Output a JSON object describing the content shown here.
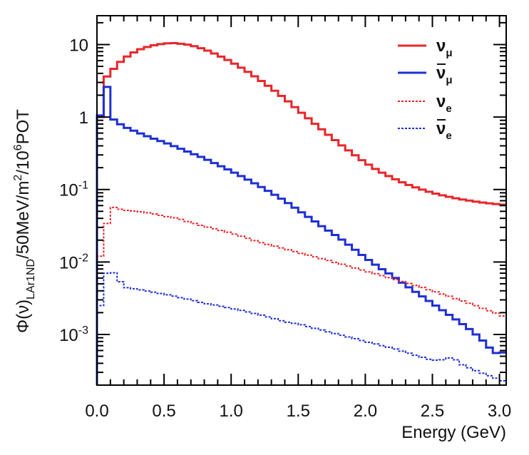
{
  "chart_data": {
    "type": "line",
    "step": true,
    "title": "",
    "xlabel": "Energy (GeV)",
    "ylabel": {
      "phi": "Φ(ν)",
      "subscript": "LAr1ND",
      "per_energy": "/50MeV/m",
      "area_exp": "2",
      "per": "/10",
      "pot_exp": "6",
      "pot": "POT"
    },
    "x_scale": "linear",
    "y_scale": "log",
    "xlim": [
      0.0,
      3.05
    ],
    "ylim": [
      0.0002,
      25
    ],
    "grid": false,
    "legend_position": "top-right",
    "x_ticks": [
      {
        "value": 0.0,
        "label": "0.0"
      },
      {
        "value": 0.5,
        "label": "0.5"
      },
      {
        "value": 1.0,
        "label": "1.0"
      },
      {
        "value": 1.5,
        "label": "1.5"
      },
      {
        "value": 2.0,
        "label": "2.0"
      },
      {
        "value": 2.5,
        "label": "2.5"
      },
      {
        "value": 3.0,
        "label": "3.0"
      }
    ],
    "y_ticks": [
      {
        "value": 10,
        "label": "10",
        "exp": ""
      },
      {
        "value": 1,
        "label": "1",
        "exp": ""
      },
      {
        "value": 0.1,
        "label": "10",
        "exp": "-1"
      },
      {
        "value": 0.01,
        "label": "10",
        "exp": "-2"
      },
      {
        "value": 0.001,
        "label": "10",
        "exp": "-3"
      }
    ],
    "bin_width": 0.05,
    "series": [
      {
        "name": "ν_μ",
        "legend_base": "ν",
        "legend_sub": "μ",
        "legend_bar": false,
        "color": "#e8262a",
        "dashed": false,
        "points": [
          [
            0.0,
            0.0002
          ],
          [
            0.025,
            1.0
          ],
          [
            0.05,
            3.2
          ],
          [
            0.1,
            4.1
          ],
          [
            0.15,
            5.2
          ],
          [
            0.2,
            6.4
          ],
          [
            0.3,
            8.3
          ],
          [
            0.4,
            9.6
          ],
          [
            0.5,
            10.3
          ],
          [
            0.55,
            10.5
          ],
          [
            0.6,
            10.4
          ],
          [
            0.7,
            9.8
          ],
          [
            0.8,
            8.6
          ],
          [
            0.9,
            7.2
          ],
          [
            1.0,
            5.8
          ],
          [
            1.1,
            4.5
          ],
          [
            1.2,
            3.4
          ],
          [
            1.3,
            2.5
          ],
          [
            1.4,
            1.8
          ],
          [
            1.5,
            1.25
          ],
          [
            1.6,
            0.88
          ],
          [
            1.7,
            0.62
          ],
          [
            1.8,
            0.44
          ],
          [
            1.9,
            0.32
          ],
          [
            2.0,
            0.235
          ],
          [
            2.1,
            0.18
          ],
          [
            2.2,
            0.145
          ],
          [
            2.3,
            0.12
          ],
          [
            2.4,
            0.103
          ],
          [
            2.5,
            0.09
          ],
          [
            2.6,
            0.081
          ],
          [
            2.7,
            0.074
          ],
          [
            2.8,
            0.069
          ],
          [
            2.9,
            0.065
          ],
          [
            3.05,
            0.061
          ]
        ]
      },
      {
        "name": "ν̄_μ",
        "legend_base": "ν",
        "legend_sub": "μ",
        "legend_bar": true,
        "color": "#1f2fd6",
        "dashed": false,
        "points": [
          [
            0.0,
            0.0002
          ],
          [
            0.025,
            1.05
          ],
          [
            0.05,
            2.5
          ],
          [
            0.075,
            2.6
          ],
          [
            0.1,
            1.0
          ],
          [
            0.15,
            0.85
          ],
          [
            0.2,
            0.74
          ],
          [
            0.3,
            0.62
          ],
          [
            0.4,
            0.52
          ],
          [
            0.5,
            0.45
          ],
          [
            0.6,
            0.38
          ],
          [
            0.7,
            0.32
          ],
          [
            0.8,
            0.27
          ],
          [
            0.9,
            0.22
          ],
          [
            1.0,
            0.18
          ],
          [
            1.1,
            0.145
          ],
          [
            1.2,
            0.115
          ],
          [
            1.3,
            0.09
          ],
          [
            1.4,
            0.07
          ],
          [
            1.5,
            0.052
          ],
          [
            1.6,
            0.039
          ],
          [
            1.7,
            0.029
          ],
          [
            1.8,
            0.022
          ],
          [
            1.9,
            0.016
          ],
          [
            2.0,
            0.0115
          ],
          [
            2.1,
            0.0085
          ],
          [
            2.2,
            0.0065
          ],
          [
            2.3,
            0.0048
          ],
          [
            2.4,
            0.0036
          ],
          [
            2.5,
            0.0027
          ],
          [
            2.6,
            0.002
          ],
          [
            2.7,
            0.0015
          ],
          [
            2.8,
            0.0011
          ],
          [
            2.9,
            0.00075
          ],
          [
            2.95,
            0.00058
          ],
          [
            3.0,
            0.00053
          ],
          [
            3.05,
            0.0006
          ]
        ]
      },
      {
        "name": "ν_e",
        "legend_base": "ν",
        "legend_sub": "e",
        "legend_bar": false,
        "color": "#e8262a",
        "dashed": true,
        "points": [
          [
            0.0,
            0.0024
          ],
          [
            0.025,
            0.012
          ],
          [
            0.05,
            0.022
          ],
          [
            0.075,
            0.034
          ],
          [
            0.1,
            0.058
          ],
          [
            0.15,
            0.055
          ],
          [
            0.2,
            0.052
          ],
          [
            0.3,
            0.05
          ],
          [
            0.4,
            0.047
          ],
          [
            0.5,
            0.043
          ],
          [
            0.6,
            0.04
          ],
          [
            0.7,
            0.035
          ],
          [
            0.8,
            0.031
          ],
          [
            0.9,
            0.028
          ],
          [
            1.0,
            0.025
          ],
          [
            1.1,
            0.022
          ],
          [
            1.2,
            0.019
          ],
          [
            1.3,
            0.017
          ],
          [
            1.4,
            0.0152
          ],
          [
            1.5,
            0.0135
          ],
          [
            1.6,
            0.0121
          ],
          [
            1.7,
            0.0108
          ],
          [
            1.8,
            0.0096
          ],
          [
            1.9,
            0.0085
          ],
          [
            2.0,
            0.0075
          ],
          [
            2.1,
            0.0067
          ],
          [
            2.2,
            0.0059
          ],
          [
            2.3,
            0.0052
          ],
          [
            2.4,
            0.0046
          ],
          [
            2.5,
            0.004
          ],
          [
            2.6,
            0.0035
          ],
          [
            2.7,
            0.003
          ],
          [
            2.8,
            0.0026
          ],
          [
            2.9,
            0.0022
          ],
          [
            3.0,
            0.0019
          ],
          [
            3.05,
            0.0017
          ]
        ]
      },
      {
        "name": "ν̄_e",
        "legend_base": "ν",
        "legend_sub": "e",
        "legend_bar": true,
        "color": "#1f2fd6",
        "dashed": true,
        "points": [
          [
            0.0,
            0.0003
          ],
          [
            0.025,
            0.0025
          ],
          [
            0.05,
            0.006
          ],
          [
            0.075,
            0.007
          ],
          [
            0.1,
            0.008
          ],
          [
            0.15,
            0.0063
          ],
          [
            0.2,
            0.0045
          ],
          [
            0.3,
            0.0042
          ],
          [
            0.4,
            0.0039
          ],
          [
            0.5,
            0.0036
          ],
          [
            0.6,
            0.0033
          ],
          [
            0.7,
            0.003
          ],
          [
            0.8,
            0.0027
          ],
          [
            0.9,
            0.0025
          ],
          [
            1.0,
            0.0023
          ],
          [
            1.1,
            0.0021
          ],
          [
            1.2,
            0.0019
          ],
          [
            1.3,
            0.0017
          ],
          [
            1.4,
            0.0015
          ],
          [
            1.5,
            0.0014
          ],
          [
            1.6,
            0.00125
          ],
          [
            1.7,
            0.00112
          ],
          [
            1.8,
            0.001
          ],
          [
            1.9,
            0.0009
          ],
          [
            2.0,
            0.0008
          ],
          [
            2.1,
            0.00072
          ],
          [
            2.2,
            0.00065
          ],
          [
            2.3,
            0.00057
          ],
          [
            2.4,
            0.0005
          ],
          [
            2.5,
            0.00044
          ],
          [
            2.6,
            0.00045
          ],
          [
            2.65,
            0.0005
          ],
          [
            2.7,
            0.0004
          ],
          [
            2.8,
            0.00033
          ],
          [
            2.9,
            0.00028
          ],
          [
            3.0,
            0.00024
          ],
          [
            3.05,
            0.00022
          ]
        ]
      }
    ]
  }
}
